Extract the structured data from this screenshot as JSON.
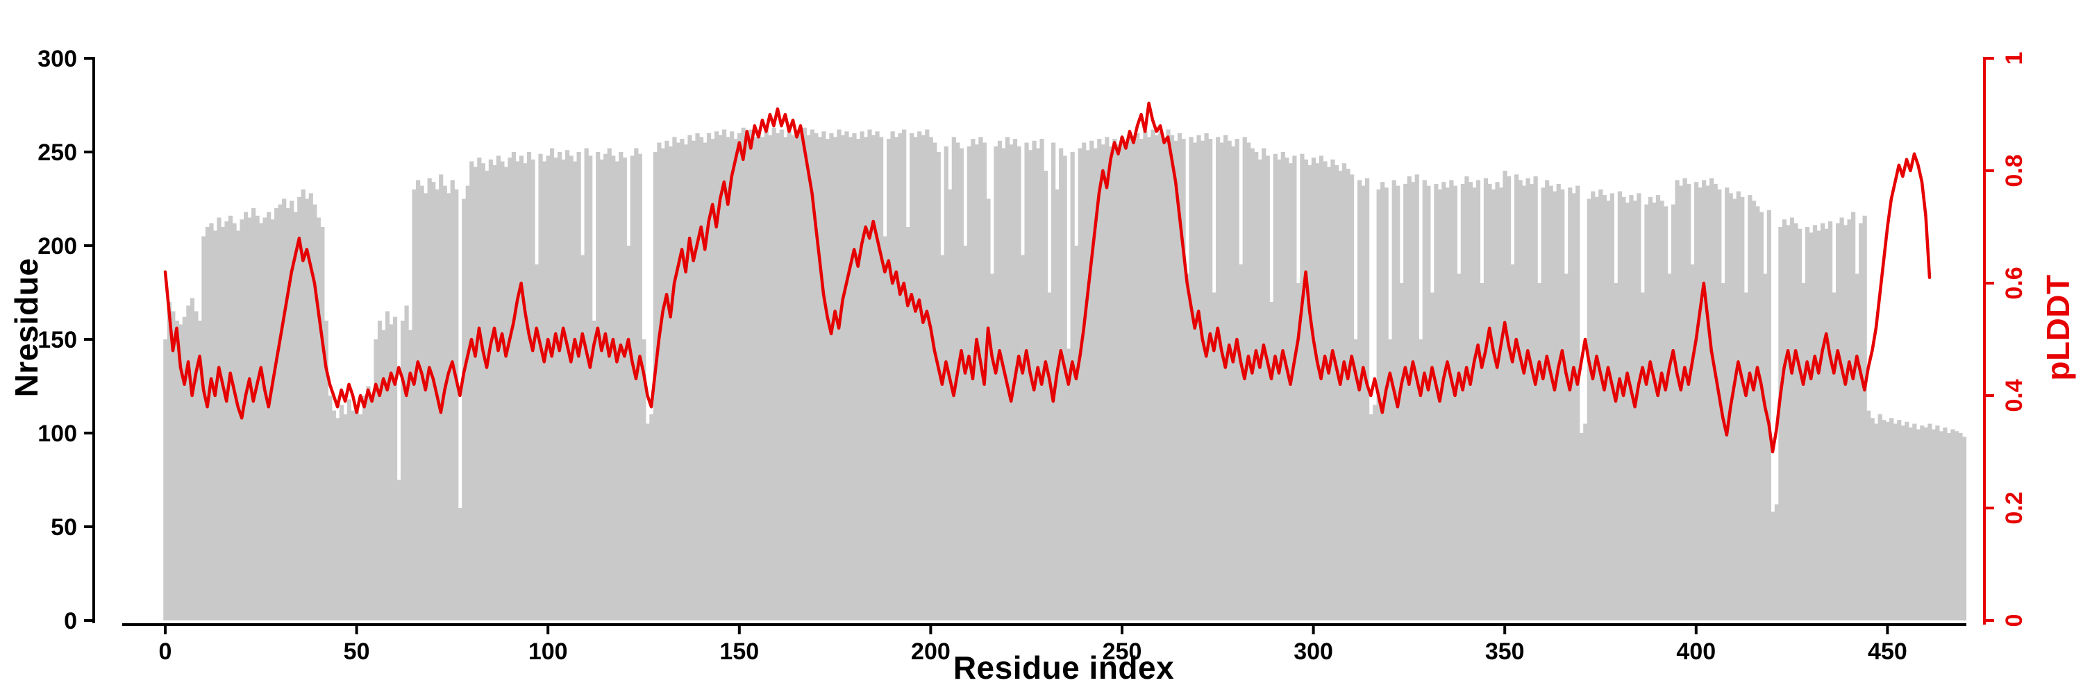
{
  "colors": {
    "bar": "#c9c9c9",
    "line": "#e60000",
    "axis": "#000000",
    "right_axis": "#e60000",
    "background": "#ffffff"
  },
  "chart_data": {
    "type": "bar",
    "subtype": "bar-plus-line-dual-axis",
    "title": "",
    "xlabel": "Residue index",
    "ylabel_left": "Nresidue",
    "ylabel_right": "pLDDT",
    "xlim": [
      0,
      470
    ],
    "ylim_left": [
      0,
      300
    ],
    "ylim_right": [
      0,
      1
    ],
    "grid": false,
    "legend": false,
    "x_ticks": [
      0,
      50,
      100,
      150,
      200,
      250,
      300,
      350,
      400,
      450
    ],
    "y_left_ticks": [
      0,
      50,
      100,
      150,
      200,
      250,
      300
    ],
    "y_right_ticks": [
      0,
      0.2,
      0.4,
      0.6,
      0.8,
      1
    ],
    "y_right_tick_labels": [
      "0",
      "0.2",
      "0.4",
      "0.6",
      "0.8",
      "1"
    ],
    "series": [
      {
        "name": "Nresidue",
        "type": "bar",
        "axis": "left",
        "color": "#c9c9c9",
        "x_start": 0,
        "values": [
          150,
          170,
          165,
          160,
          158,
          162,
          168,
          172,
          165,
          160,
          205,
          210,
          212,
          208,
          215,
          210,
          213,
          216,
          212,
          208,
          214,
          218,
          215,
          220,
          216,
          212,
          215,
          218,
          214,
          220,
          222,
          225,
          220,
          224,
          218,
          226,
          230,
          225,
          228,
          222,
          215,
          210,
          160,
          120,
          112,
          108,
          115,
          110,
          118,
          112,
          115,
          110,
          120,
          125,
          118,
          150,
          160,
          155,
          165,
          158,
          162,
          75,
          160,
          168,
          155,
          230,
          235,
          232,
          228,
          236,
          234,
          230,
          238,
          232,
          228,
          235,
          230,
          60,
          225,
          232,
          245,
          242,
          247,
          244,
          240,
          246,
          243,
          248,
          245,
          242,
          247,
          250,
          245,
          248,
          244,
          250,
          246,
          190,
          249,
          245,
          248,
          252,
          247,
          250,
          246,
          251,
          248,
          245,
          250,
          195,
          252,
          248,
          160,
          250,
          246,
          249,
          252,
          248,
          245,
          250,
          247,
          200,
          248,
          252,
          249,
          150,
          105,
          110,
          250,
          255,
          252,
          256,
          253,
          258,
          255,
          257,
          254,
          259,
          256,
          260,
          258,
          255,
          260,
          257,
          261,
          259,
          262,
          258,
          261,
          257,
          260,
          263,
          259,
          262,
          258,
          261,
          258,
          262,
          259,
          263,
          260,
          262,
          258,
          261,
          259,
          262,
          260,
          263,
          259,
          262,
          260,
          258,
          261,
          257,
          260,
          258,
          262,
          259,
          261,
          258,
          260,
          257,
          261,
          258,
          262,
          259,
          261,
          258,
          205,
          257,
          261,
          258,
          260,
          262,
          210,
          260,
          258,
          261,
          259,
          262,
          258,
          255,
          250,
          195,
          253,
          230,
          258,
          255,
          252,
          200,
          253,
          257,
          254,
          258,
          255,
          225,
          185,
          253,
          256,
          252,
          258,
          254,
          257,
          253,
          195,
          255,
          251,
          256,
          252,
          257,
          240,
          175,
          255,
          230,
          252,
          248,
          145,
          250,
          200,
          252,
          255,
          251,
          256,
          252,
          257,
          254,
          258,
          253,
          257,
          254,
          258,
          255,
          259,
          256,
          260,
          257,
          261,
          258,
          262,
          259,
          261,
          258,
          262,
          259,
          256,
          260,
          257,
          185,
          258,
          255,
          259,
          256,
          260,
          257,
          175,
          258,
          255,
          259,
          256,
          253,
          257,
          190,
          258,
          255,
          252,
          250,
          246,
          252,
          248,
          170,
          249,
          246,
          250,
          247,
          244,
          248,
          180,
          249,
          246,
          243,
          247,
          244,
          248,
          245,
          242,
          246,
          243,
          240,
          244,
          241,
          238,
          150,
          235,
          232,
          236,
          110,
          115,
          230,
          234,
          231,
          150,
          235,
          232,
          180,
          233,
          237,
          234,
          238,
          150,
          235,
          232,
          175,
          233,
          230,
          234,
          231,
          235,
          232,
          185,
          233,
          237,
          234,
          231,
          235,
          180,
          236,
          233,
          230,
          234,
          231,
          240,
          237,
          190,
          238,
          235,
          232,
          236,
          233,
          237,
          180,
          231,
          235,
          232,
          229,
          233,
          230,
          185,
          231,
          228,
          232,
          100,
          105,
          225,
          229,
          226,
          230,
          227,
          224,
          228,
          180,
          229,
          226,
          223,
          227,
          224,
          228,
          175,
          222,
          226,
          223,
          227,
          224,
          221,
          185,
          222,
          235,
          232,
          236,
          233,
          190,
          234,
          231,
          235,
          232,
          236,
          233,
          230,
          180,
          231,
          228,
          225,
          229,
          226,
          175,
          227,
          224,
          221,
          218,
          185,
          219,
          58,
          62,
          210,
          214,
          211,
          215,
          212,
          209,
          180,
          210,
          207,
          211,
          208,
          212,
          209,
          213,
          175,
          212,
          215,
          211,
          214,
          218,
          185,
          212,
          216,
          112,
          108,
          105,
          110,
          107,
          106,
          108,
          105,
          107,
          104,
          106,
          103,
          105,
          102,
          104,
          103,
          105,
          102,
          104,
          101,
          103,
          100,
          102,
          101,
          100,
          98
        ]
      },
      {
        "name": "pLDDT",
        "type": "line",
        "axis": "right",
        "color": "#e60000",
        "x_start": 0,
        "values": [
          0.62,
          0.55,
          0.48,
          0.52,
          0.45,
          0.42,
          0.46,
          0.4,
          0.44,
          0.47,
          0.41,
          0.38,
          0.43,
          0.4,
          0.45,
          0.42,
          0.39,
          0.44,
          0.41,
          0.38,
          0.36,
          0.4,
          0.43,
          0.39,
          0.42,
          0.45,
          0.41,
          0.38,
          0.42,
          0.46,
          0.5,
          0.54,
          0.58,
          0.62,
          0.65,
          0.68,
          0.64,
          0.66,
          0.63,
          0.6,
          0.55,
          0.5,
          0.45,
          0.42,
          0.4,
          0.38,
          0.41,
          0.39,
          0.42,
          0.4,
          0.37,
          0.4,
          0.38,
          0.41,
          0.39,
          0.42,
          0.4,
          0.43,
          0.41,
          0.44,
          0.42,
          0.45,
          0.43,
          0.4,
          0.44,
          0.42,
          0.46,
          0.44,
          0.41,
          0.45,
          0.43,
          0.4,
          0.37,
          0.41,
          0.44,
          0.46,
          0.43,
          0.4,
          0.44,
          0.47,
          0.5,
          0.47,
          0.52,
          0.48,
          0.45,
          0.49,
          0.52,
          0.48,
          0.51,
          0.47,
          0.5,
          0.53,
          0.57,
          0.6,
          0.55,
          0.51,
          0.48,
          0.52,
          0.49,
          0.46,
          0.5,
          0.47,
          0.51,
          0.48,
          0.52,
          0.49,
          0.46,
          0.5,
          0.47,
          0.51,
          0.48,
          0.45,
          0.49,
          0.52,
          0.48,
          0.51,
          0.47,
          0.5,
          0.46,
          0.49,
          0.47,
          0.5,
          0.46,
          0.43,
          0.47,
          0.44,
          0.4,
          0.38,
          0.44,
          0.5,
          0.55,
          0.58,
          0.54,
          0.6,
          0.63,
          0.66,
          0.62,
          0.68,
          0.64,
          0.67,
          0.7,
          0.66,
          0.71,
          0.74,
          0.7,
          0.75,
          0.78,
          0.74,
          0.79,
          0.82,
          0.85,
          0.82,
          0.87,
          0.84,
          0.88,
          0.86,
          0.89,
          0.87,
          0.9,
          0.88,
          0.91,
          0.88,
          0.9,
          0.87,
          0.89,
          0.86,
          0.88,
          0.84,
          0.8,
          0.76,
          0.7,
          0.64,
          0.58,
          0.54,
          0.51,
          0.55,
          0.52,
          0.57,
          0.6,
          0.63,
          0.66,
          0.63,
          0.67,
          0.7,
          0.68,
          0.71,
          0.68,
          0.65,
          0.62,
          0.64,
          0.6,
          0.62,
          0.58,
          0.6,
          0.56,
          0.58,
          0.55,
          0.57,
          0.53,
          0.55,
          0.52,
          0.48,
          0.45,
          0.42,
          0.46,
          0.43,
          0.4,
          0.44,
          0.48,
          0.44,
          0.47,
          0.43,
          0.5,
          0.46,
          0.42,
          0.52,
          0.47,
          0.44,
          0.48,
          0.45,
          0.42,
          0.39,
          0.43,
          0.47,
          0.44,
          0.48,
          0.44,
          0.41,
          0.45,
          0.42,
          0.46,
          0.43,
          0.39,
          0.44,
          0.48,
          0.45,
          0.42,
          0.46,
          0.43,
          0.47,
          0.52,
          0.58,
          0.64,
          0.7,
          0.76,
          0.8,
          0.77,
          0.82,
          0.85,
          0.83,
          0.86,
          0.84,
          0.87,
          0.85,
          0.88,
          0.9,
          0.87,
          0.92,
          0.89,
          0.87,
          0.88,
          0.85,
          0.86,
          0.82,
          0.78,
          0.72,
          0.66,
          0.6,
          0.56,
          0.52,
          0.55,
          0.5,
          0.47,
          0.51,
          0.48,
          0.52,
          0.48,
          0.45,
          0.49,
          0.46,
          0.5,
          0.46,
          0.43,
          0.47,
          0.44,
          0.48,
          0.45,
          0.49,
          0.46,
          0.43,
          0.47,
          0.44,
          0.48,
          0.45,
          0.42,
          0.46,
          0.5,
          0.56,
          0.62,
          0.55,
          0.5,
          0.46,
          0.43,
          0.47,
          0.44,
          0.48,
          0.45,
          0.42,
          0.46,
          0.43,
          0.47,
          0.44,
          0.41,
          0.45,
          0.42,
          0.4,
          0.43,
          0.4,
          0.37,
          0.41,
          0.44,
          0.41,
          0.38,
          0.42,
          0.45,
          0.42,
          0.46,
          0.43,
          0.4,
          0.44,
          0.41,
          0.45,
          0.42,
          0.39,
          0.43,
          0.46,
          0.43,
          0.4,
          0.44,
          0.41,
          0.45,
          0.42,
          0.46,
          0.49,
          0.45,
          0.48,
          0.52,
          0.48,
          0.45,
          0.49,
          0.53,
          0.49,
          0.46,
          0.5,
          0.47,
          0.44,
          0.48,
          0.45,
          0.42,
          0.46,
          0.43,
          0.47,
          0.44,
          0.41,
          0.45,
          0.48,
          0.44,
          0.41,
          0.45,
          0.42,
          0.46,
          0.5,
          0.46,
          0.43,
          0.47,
          0.44,
          0.41,
          0.45,
          0.42,
          0.39,
          0.43,
          0.4,
          0.44,
          0.41,
          0.38,
          0.42,
          0.45,
          0.42,
          0.46,
          0.43,
          0.4,
          0.44,
          0.41,
          0.45,
          0.48,
          0.44,
          0.41,
          0.45,
          0.42,
          0.46,
          0.5,
          0.55,
          0.6,
          0.54,
          0.48,
          0.44,
          0.4,
          0.36,
          0.33,
          0.38,
          0.42,
          0.46,
          0.43,
          0.4,
          0.44,
          0.41,
          0.45,
          0.42,
          0.38,
          0.35,
          0.3,
          0.34,
          0.4,
          0.45,
          0.48,
          0.44,
          0.48,
          0.45,
          0.42,
          0.46,
          0.43,
          0.47,
          0.44,
          0.48,
          0.51,
          0.47,
          0.44,
          0.48,
          0.45,
          0.42,
          0.46,
          0.43,
          0.47,
          0.44,
          0.41,
          0.45,
          0.48,
          0.52,
          0.58,
          0.64,
          0.7,
          0.75,
          0.78,
          0.81,
          0.79,
          0.82,
          0.8,
          0.83,
          0.81,
          0.78,
          0.72,
          0.61
        ]
      }
    ]
  }
}
